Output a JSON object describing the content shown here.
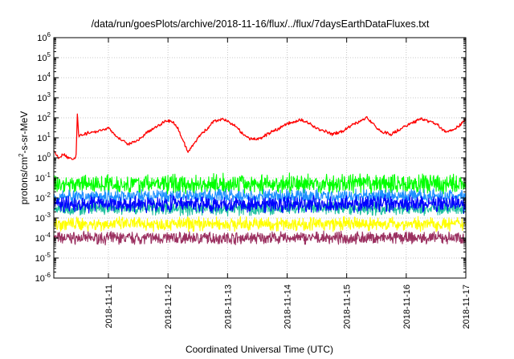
{
  "chart_data": {
    "type": "line",
    "title": "/data/run/goesPlots/archive/2018-11-16/flux/../flux/7daysEarthDataFluxes.txt",
    "xlabel": "Coordinated Universal Time (UTC)",
    "ylabel": "protons/cm²-s-sr-MeV",
    "ylabel_base": "protons/cm",
    "ylabel_sup": "2",
    "ylabel_rest": "-s-sr-MeV",
    "yscale": "log",
    "ylim": [
      1e-06,
      1000000.0
    ],
    "xlim": [
      "2018-11-10T02:00",
      "2018-11-17T00:00"
    ],
    "grid": true,
    "legend": "none",
    "y_ticks": [
      {
        "value": 1e-06,
        "base": "10",
        "exp": "-6"
      },
      {
        "value": 1e-05,
        "base": "10",
        "exp": "-5"
      },
      {
        "value": 0.0001,
        "base": "10",
        "exp": "-4"
      },
      {
        "value": 0.001,
        "base": "10",
        "exp": "-3"
      },
      {
        "value": 0.01,
        "base": "10",
        "exp": "-2"
      },
      {
        "value": 0.1,
        "base": "10",
        "exp": "-1"
      },
      {
        "value": 1,
        "base": "10",
        "exp": "0"
      },
      {
        "value": 10.0,
        "base": "10",
        "exp": "1"
      },
      {
        "value": 100.0,
        "base": "10",
        "exp": "2"
      },
      {
        "value": 1000.0,
        "base": "10",
        "exp": "3"
      },
      {
        "value": 10000.0,
        "base": "10",
        "exp": "4"
      },
      {
        "value": 100000.0,
        "base": "10",
        "exp": "5"
      },
      {
        "value": 1000000.0,
        "base": "10",
        "exp": "6"
      }
    ],
    "x_ticks": [
      "2018-11-11",
      "2018-11-12",
      "2018-11-13",
      "2018-11-14",
      "2018-11-15",
      "2018-11-16",
      "2018-11-17"
    ],
    "series": [
      {
        "color": "#ff0000",
        "x": [
          "2018-11-10T02:00",
          "2018-11-10T04:00",
          "2018-11-10T06:00",
          "2018-11-10T08:00",
          "2018-11-10T10:00",
          "2018-11-10T11:00",
          "2018-11-10T11:30",
          "2018-11-10T12:00",
          "2018-11-10T14:00",
          "2018-11-10T18:00",
          "2018-11-11T00:00",
          "2018-11-11T04:00",
          "2018-11-11T08:00",
          "2018-11-11T12:00",
          "2018-11-11T16:00",
          "2018-11-11T20:00",
          "2018-11-11T23:00",
          "2018-11-12T02:00",
          "2018-11-12T04:00",
          "2018-11-12T06:00",
          "2018-11-12T08:00",
          "2018-11-12T12:00",
          "2018-11-12T16:00",
          "2018-11-12T18:00",
          "2018-11-12T22:00",
          "2018-11-13T03:00",
          "2018-11-13T08:00",
          "2018-11-13T12:00",
          "2018-11-13T18:00",
          "2018-11-14T00:00",
          "2018-11-14T06:00",
          "2018-11-14T12:00",
          "2018-11-14T18:00",
          "2018-11-14T22:00",
          "2018-11-15T03:00",
          "2018-11-15T08:00",
          "2018-11-15T14:00",
          "2018-11-15T18:00",
          "2018-11-16T00:00",
          "2018-11-16T06:00",
          "2018-11-16T12:00",
          "2018-11-16T16:00",
          "2018-11-16T20:00",
          "2018-11-17T00:00"
        ],
        "y": [
          2,
          1,
          1.5,
          1,
          0.8,
          1.2,
          200,
          12,
          15,
          20,
          30,
          10,
          5,
          8,
          20,
          40,
          70,
          60,
          30,
          8,
          2,
          10,
          30,
          60,
          90,
          40,
          10,
          8,
          20,
          50,
          80,
          30,
          15,
          20,
          50,
          100,
          20,
          15,
          40,
          90,
          50,
          20,
          30,
          80
        ]
      },
      {
        "color": "#00ff00",
        "x": [
          "2018-11-10T02:00",
          "2018-11-17T00:00"
        ],
        "y": [
          0.05,
          0.05
        ]
      },
      {
        "color": "#1e90ff",
        "x": [
          "2018-11-10T02:00",
          "2018-11-17T00:00"
        ],
        "y": [
          0.012,
          0.012
        ]
      },
      {
        "color": "#0000ff",
        "x": [
          "2018-11-10T02:00",
          "2018-11-17T00:00"
        ],
        "y": [
          0.005,
          0.005
        ]
      },
      {
        "color": "#20c0a0",
        "x": [
          "2018-11-10T02:00",
          "2018-11-17T00:00"
        ],
        "y": [
          0.003,
          0.003
        ]
      },
      {
        "color": "#ffff00",
        "x": [
          "2018-11-10T02:00",
          "2018-11-17T00:00"
        ],
        "y": [
          0.0005,
          0.0005
        ]
      },
      {
        "color": "#9b3060",
        "x": [
          "2018-11-10T02:00",
          "2018-11-17T00:00"
        ],
        "y": [
          0.0001,
          0.0001
        ]
      }
    ]
  }
}
